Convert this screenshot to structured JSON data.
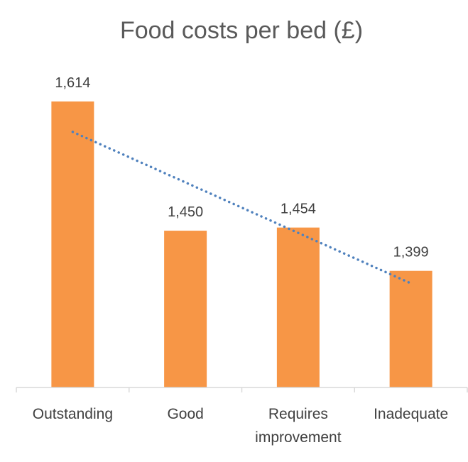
{
  "chart_data": {
    "type": "bar",
    "title": "Food costs per bed (£)",
    "categories": [
      [
        "Outstanding"
      ],
      [
        "Good"
      ],
      [
        "Requires",
        "improvement"
      ],
      [
        "Inadequate"
      ]
    ],
    "values": [
      1614,
      1450,
      1454,
      1399
    ],
    "data_labels": [
      "1,614",
      "1,450",
      "1,454",
      "1,399"
    ],
    "xlabel": "",
    "ylabel": "",
    "ylim": [
      1251,
      1650
    ],
    "grid": false,
    "legend": "none",
    "trendline": {
      "type": "linear",
      "style": "dotted"
    },
    "colors": {
      "bar": "#F79646",
      "trendline": "#4F81BD",
      "axis": "#D9D9D9",
      "text": "#404040",
      "title": "#595959"
    }
  }
}
